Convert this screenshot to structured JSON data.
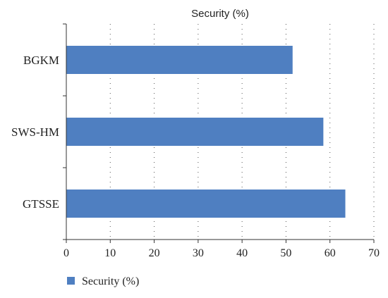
{
  "chart_data": {
    "type": "bar",
    "orientation": "horizontal",
    "title": "Security (%)",
    "categories": [
      "BGKM",
      "SWS-HM",
      "GTSSE"
    ],
    "series": [
      {
        "name": "Security (%)",
        "values": [
          51.5,
          58.5,
          63.5
        ],
        "color": "#4f7fc1"
      }
    ],
    "xlim": [
      0,
      70
    ],
    "xticks": [
      "0",
      "10",
      "20",
      "30",
      "40",
      "50",
      "60",
      "70"
    ],
    "grid": "vertical-dotted",
    "legend": {
      "placement": "bottom-left",
      "label": "Security (%)"
    }
  }
}
